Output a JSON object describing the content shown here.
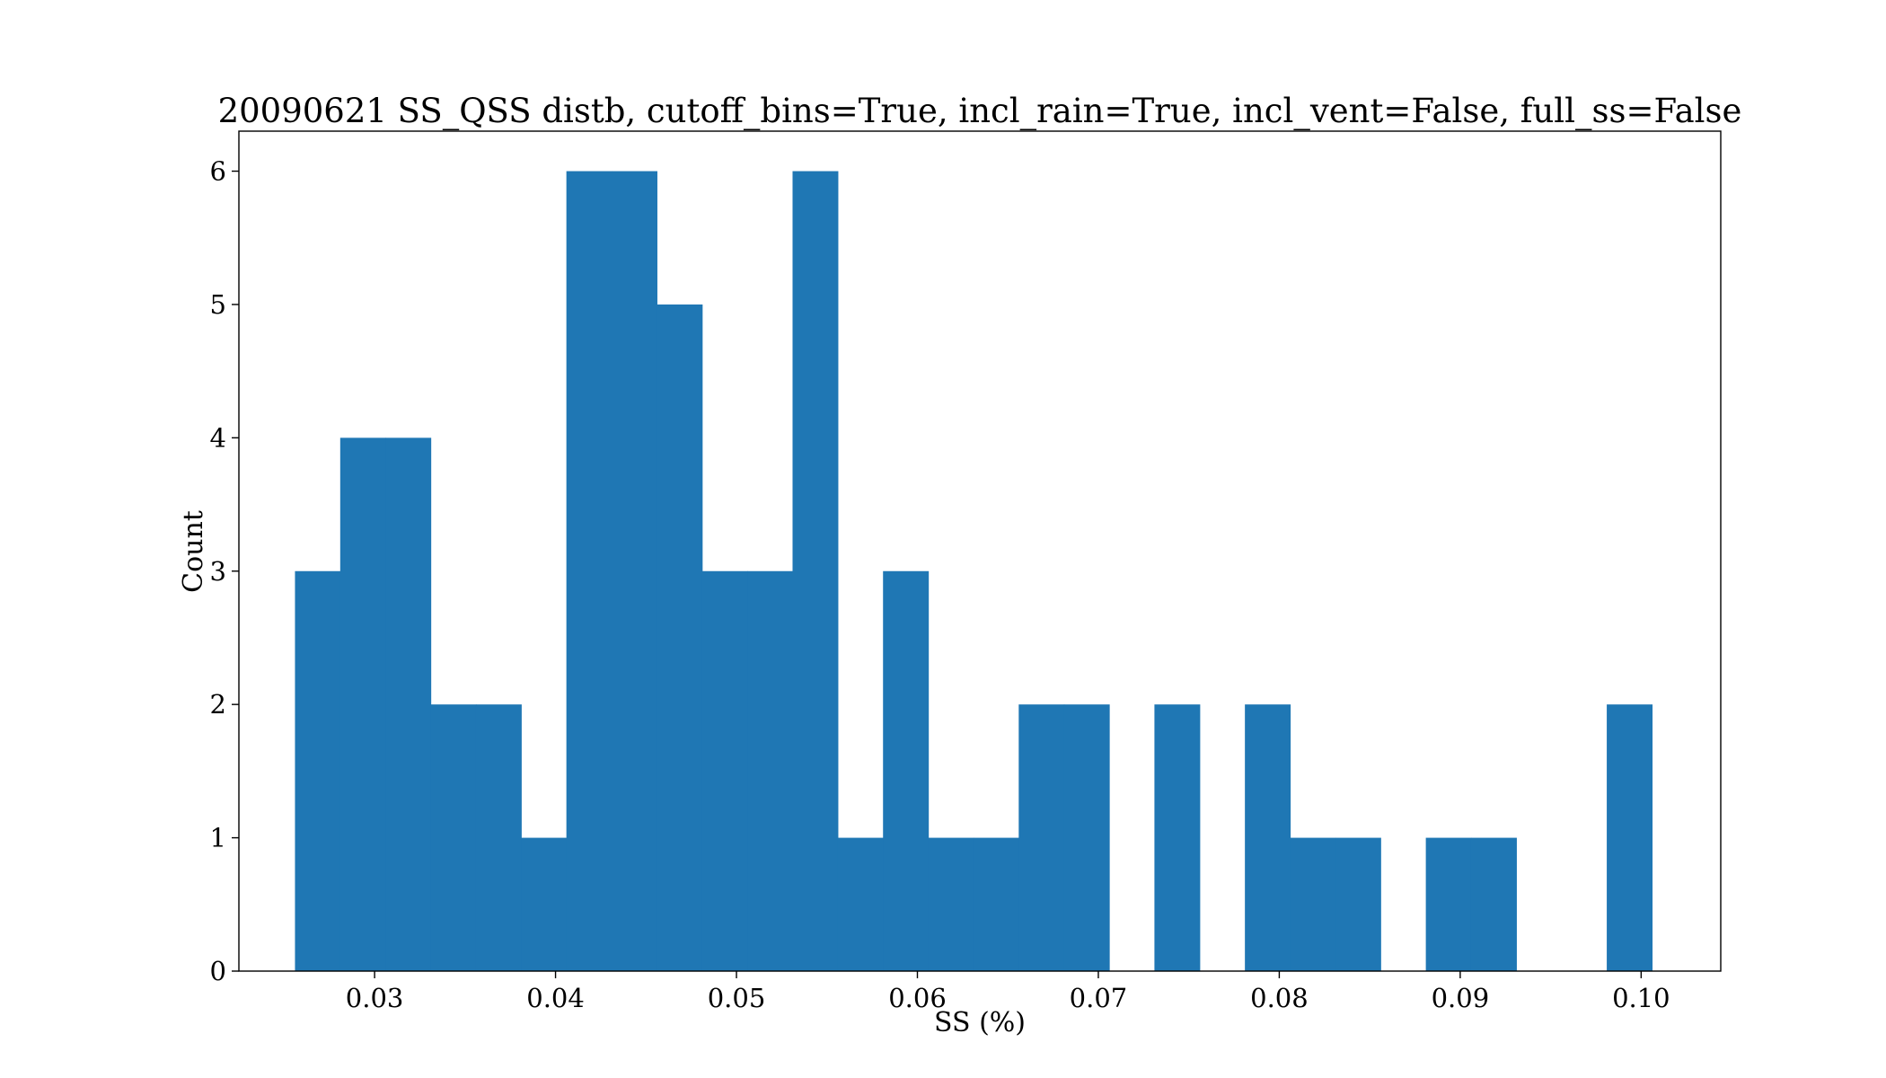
{
  "chart_data": {
    "type": "bar",
    "title": "20090621 SS_QSS distb, cutoff_bins=True, incl_rain=True, incl_vent=False, full_ss=False",
    "xlabel": "SS (%)",
    "ylabel": "Count",
    "xlim": [
      0.0225,
      0.1044
    ],
    "ylim": [
      0,
      6.3
    ],
    "xticks": [
      0.03,
      0.04,
      0.05,
      0.06,
      0.07,
      0.08,
      0.09,
      0.1
    ],
    "xtick_labels": [
      "0.03",
      "0.04",
      "0.05",
      "0.06",
      "0.07",
      "0.08",
      "0.09",
      "0.10"
    ],
    "yticks": [
      0,
      1,
      2,
      3,
      4,
      5,
      6
    ],
    "ytick_labels": [
      "0",
      "1",
      "2",
      "3",
      "4",
      "5",
      "6"
    ],
    "grid": false,
    "bar_color": "#1f77b4",
    "bin_edges": [
      0.0256,
      0.0281,
      0.0306,
      0.0331,
      0.0356,
      0.0381,
      0.0406,
      0.0431,
      0.0456,
      0.0481,
      0.0506,
      0.0531,
      0.0556,
      0.0581,
      0.0606,
      0.0631,
      0.0656,
      0.0681,
      0.0706,
      0.0731,
      0.0756,
      0.0781,
      0.0806,
      0.0831,
      0.0856,
      0.0881,
      0.0906,
      0.0931,
      0.0956,
      0.0981,
      0.1006
    ],
    "counts": [
      3,
      4,
      4,
      2,
      2,
      1,
      6,
      6,
      5,
      3,
      3,
      6,
      1,
      3,
      1,
      1,
      2,
      2,
      0,
      2,
      0,
      2,
      1,
      1,
      0,
      1,
      1,
      0,
      0,
      2
    ]
  }
}
